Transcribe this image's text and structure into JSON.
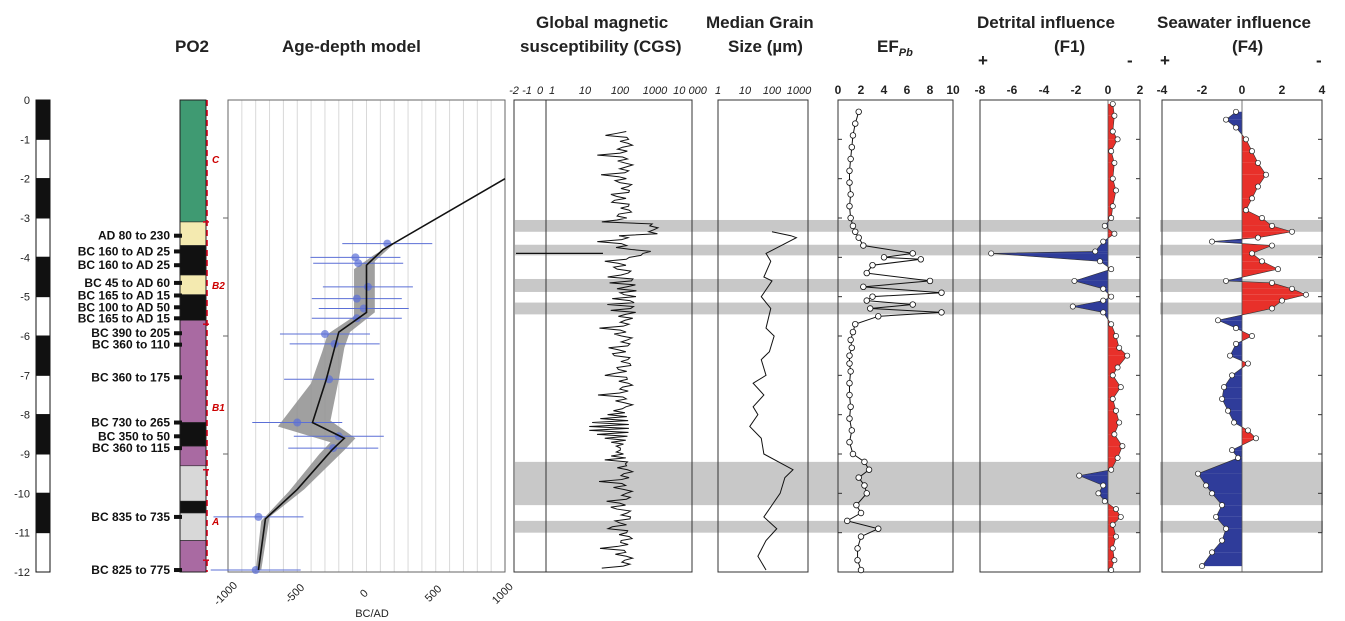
{
  "colors": {
    "band": "#c8c8c8",
    "envelope": "#8f8f8f",
    "grid": "#d9d9d9",
    "negative": "#2f3c9a",
    "positive": "#e8302a",
    "unit_line": "#d0021b",
    "point_blue": "#5b6fd6",
    "facies_green": "#3f9a72",
    "facies_yellow": "#f4eab0",
    "facies_purple": "#a96aa2",
    "facies_black": "#111111",
    "facies_grey": "#d8d8d8"
  },
  "core": {
    "name": "PO2",
    "units": [
      "C",
      "B2",
      "B1",
      "A"
    ]
  },
  "depth_ticks": [
    "0",
    "-1",
    "-2",
    "-3",
    "-4",
    "-5",
    "-6",
    "-7",
    "-8",
    "-9",
    "-10",
    "-11",
    "-12"
  ],
  "signs": {
    "plus": "+",
    "minus": "-"
  },
  "panel_titles": {
    "age_depth": "Age-depth model",
    "ms_line1": "Global magnetic",
    "ms_line2": "susceptibility (CGS)",
    "grain_line1": "Median Grain",
    "grain_line2": "Size (µm)",
    "ef_main": "EF",
    "ef_sub": "Pb",
    "f1_line1": "Detrital influence",
    "f1_line2": "(F1)",
    "f4_line1": "Seawater influence",
    "f4_line2": "(F4)"
  },
  "ages": [
    {
      "label": "AD 80 to 230",
      "depth": -3.45
    },
    {
      "label": "BC 160 to AD 25",
      "depth": -3.85
    },
    {
      "label": "BC 160 to AD 25",
      "depth": -4.2
    },
    {
      "label": "BC 45 to AD 60",
      "depth": -4.65
    },
    {
      "label": "BC 165 to AD 15",
      "depth": -4.97
    },
    {
      "label": "BC 100 to AD 50",
      "depth": -5.27
    },
    {
      "label": "BC 165 to AD 15",
      "depth": -5.55
    },
    {
      "label": "BC 390 to 205",
      "depth": -5.93
    },
    {
      "label": "BC 360 to 110",
      "depth": -6.22
    },
    {
      "label": "BC 360 to 175",
      "depth": -7.05
    },
    {
      "label": "BC 730 to 265",
      "depth": -8.2
    },
    {
      "label": "BC 350 to 50",
      "depth": -8.55
    },
    {
      "label": "BC 360 to 115",
      "depth": -8.85
    },
    {
      "label": "BC 835 to 735",
      "depth": -10.6
    },
    {
      "label": "BC 825 to 775",
      "depth": -11.95
    }
  ],
  "chart_data": [
    {
      "type": "line",
      "title": "Age-depth model",
      "xlabel": "BC/AD",
      "ylabel": "",
      "xlim": [
        -1000,
        1000
      ],
      "ylim": [
        -12,
        0
      ],
      "xticks": [
        "-1000",
        "-500",
        "0",
        "500",
        "1000"
      ],
      "model": [
        [
          1000,
          -2.0
        ],
        [
          120,
          -3.8
        ],
        [
          0,
          -4.2
        ],
        [
          0,
          -4.6
        ],
        [
          0,
          -5.0
        ],
        [
          0,
          -5.4
        ],
        [
          -200,
          -5.9
        ],
        [
          -230,
          -6.3
        ],
        [
          -290,
          -7.1
        ],
        [
          -390,
          -8.2
        ],
        [
          -160,
          -8.6
        ],
        [
          -250,
          -8.9
        ],
        [
          -500,
          -9.9
        ],
        [
          -730,
          -10.65
        ],
        [
          -780,
          -11.95
        ]
      ],
      "envelope_upper": [
        [
          1000,
          -2.0
        ],
        [
          200,
          -3.65
        ],
        [
          60,
          -4.1
        ],
        [
          60,
          -4.6
        ],
        [
          60,
          -5.0
        ],
        [
          60,
          -5.4
        ],
        [
          -120,
          -5.9
        ],
        [
          -160,
          -6.3
        ],
        [
          -200,
          -7.1
        ],
        [
          -260,
          -8.15
        ],
        [
          -80,
          -8.6
        ],
        [
          -160,
          -8.9
        ],
        [
          -450,
          -9.9
        ],
        [
          -700,
          -10.6
        ],
        [
          -760,
          -11.95
        ]
      ],
      "envelope_lower": [
        [
          1000,
          -2.0
        ],
        [
          50,
          -3.95
        ],
        [
          -90,
          -4.3
        ],
        [
          -90,
          -4.7
        ],
        [
          -90,
          -5.1
        ],
        [
          -90,
          -5.5
        ],
        [
          -280,
          -5.95
        ],
        [
          -320,
          -6.4
        ],
        [
          -400,
          -7.2
        ],
        [
          -640,
          -8.3
        ],
        [
          -260,
          -8.7
        ],
        [
          -340,
          -9.0
        ],
        [
          -560,
          -9.95
        ],
        [
          -760,
          -10.7
        ],
        [
          -800,
          -11.95
        ]
      ],
      "dates": [
        [
          150,
          -3.65
        ],
        [
          -80,
          -4.0
        ],
        [
          -60,
          -4.15
        ],
        [
          10,
          -4.75
        ],
        [
          -70,
          -5.05
        ],
        [
          -20,
          -5.3
        ],
        [
          -70,
          -5.55
        ],
        [
          -300,
          -5.95
        ],
        [
          -230,
          -6.2
        ],
        [
          -270,
          -7.1
        ],
        [
          -500,
          -8.2
        ],
        [
          -200,
          -8.55
        ],
        [
          -240,
          -8.85
        ],
        [
          -780,
          -10.6
        ],
        [
          -800,
          -11.95
        ]
      ]
    },
    {
      "type": "line",
      "title": "Global magnetic susceptibility (CGS)",
      "xscale": "log",
      "ylim": [
        -12,
        0
      ],
      "xticks": [
        "-2",
        "-1",
        "0",
        "1",
        "10",
        "100",
        "1000",
        "10 000"
      ]
    },
    {
      "type": "line",
      "title": "Median Grain Size (µm)",
      "xscale": "log",
      "xticks": [
        "1",
        "10",
        "100",
        "1000"
      ],
      "ylim": [
        -12,
        0
      ],
      "points": [
        [
          100,
          -3.35
        ],
        [
          500,
          -3.45
        ],
        [
          800,
          -3.5
        ],
        [
          60,
          -3.9
        ],
        [
          90,
          -4.1
        ],
        [
          50,
          -4.5
        ],
        [
          100,
          -4.6
        ],
        [
          40,
          -5.0
        ],
        [
          90,
          -5.3
        ],
        [
          60,
          -5.8
        ],
        [
          120,
          -6.0
        ],
        [
          80,
          -6.4
        ],
        [
          40,
          -6.6
        ],
        [
          60,
          -7.0
        ],
        [
          20,
          -7.2
        ],
        [
          50,
          -7.5
        ],
        [
          20,
          -7.8
        ],
        [
          30,
          -8.0
        ],
        [
          15,
          -8.3
        ],
        [
          40,
          -8.6
        ],
        [
          50,
          -9.0
        ],
        [
          600,
          -9.4
        ],
        [
          300,
          -9.6
        ],
        [
          200,
          -10.0
        ],
        [
          100,
          -10.3
        ],
        [
          50,
          -10.6
        ],
        [
          150,
          -10.9
        ],
        [
          60,
          -11.2
        ],
        [
          30,
          -11.6
        ],
        [
          60,
          -11.95
        ]
      ]
    },
    {
      "type": "line",
      "title": "EF Pb",
      "xlim": [
        0,
        10
      ],
      "xticks": [
        "0",
        "2",
        "4",
        "6",
        "8",
        "10"
      ],
      "ylim": [
        -12,
        0
      ],
      "points": [
        [
          1.8,
          -0.3
        ],
        [
          1.5,
          -0.6
        ],
        [
          1.3,
          -0.9
        ],
        [
          1.2,
          -1.2
        ],
        [
          1.1,
          -1.5
        ],
        [
          1.0,
          -1.8
        ],
        [
          1.0,
          -2.1
        ],
        [
          1.1,
          -2.4
        ],
        [
          1.0,
          -2.7
        ],
        [
          1.1,
          -3.0
        ],
        [
          1.3,
          -3.2
        ],
        [
          1.5,
          -3.35
        ],
        [
          1.8,
          -3.5
        ],
        [
          2.2,
          -3.7
        ],
        [
          6.5,
          -3.9
        ],
        [
          4.0,
          -4.0
        ],
        [
          7.2,
          -4.05
        ],
        [
          3.0,
          -4.2
        ],
        [
          2.5,
          -4.4
        ],
        [
          8.0,
          -4.6
        ],
        [
          2.2,
          -4.75
        ],
        [
          9.0,
          -4.9
        ],
        [
          3.0,
          -5.0
        ],
        [
          2.5,
          -5.1
        ],
        [
          6.5,
          -5.2
        ],
        [
          2.8,
          -5.3
        ],
        [
          9.0,
          -5.4
        ],
        [
          3.5,
          -5.5
        ],
        [
          1.5,
          -5.7
        ],
        [
          1.3,
          -5.9
        ],
        [
          1.1,
          -6.1
        ],
        [
          1.2,
          -6.3
        ],
        [
          1.0,
          -6.5
        ],
        [
          1.0,
          -6.7
        ],
        [
          1.1,
          -6.9
        ],
        [
          1.0,
          -7.2
        ],
        [
          1.0,
          -7.5
        ],
        [
          1.1,
          -7.8
        ],
        [
          1.0,
          -8.1
        ],
        [
          1.2,
          -8.4
        ],
        [
          1.0,
          -8.7
        ],
        [
          1.3,
          -9.0
        ],
        [
          2.3,
          -9.2
        ],
        [
          2.7,
          -9.4
        ],
        [
          1.8,
          -9.6
        ],
        [
          2.3,
          -9.8
        ],
        [
          2.5,
          -10.0
        ],
        [
          1.6,
          -10.3
        ],
        [
          2.0,
          -10.5
        ],
        [
          0.8,
          -10.7
        ],
        [
          3.5,
          -10.9
        ],
        [
          2.0,
          -11.1
        ],
        [
          1.7,
          -11.4
        ],
        [
          1.7,
          -11.7
        ],
        [
          2.0,
          -11.95
        ]
      ]
    },
    {
      "type": "area",
      "title": "Detrital influence (F1)",
      "xlim": [
        -8,
        2
      ],
      "xticks": [
        "-8",
        "-6",
        "-4",
        "-2",
        "0",
        "2"
      ],
      "ylim": [
        -12,
        0
      ],
      "points": [
        [
          0.3,
          -0.1
        ],
        [
          0.4,
          -0.4
        ],
        [
          0.3,
          -0.8
        ],
        [
          0.6,
          -1.0
        ],
        [
          0.2,
          -1.3
        ],
        [
          0.4,
          -1.6
        ],
        [
          0.3,
          -2.0
        ],
        [
          0.5,
          -2.3
        ],
        [
          0.3,
          -2.7
        ],
        [
          0.2,
          -3.0
        ],
        [
          -0.2,
          -3.2
        ],
        [
          0.4,
          -3.4
        ],
        [
          -0.3,
          -3.6
        ],
        [
          -0.8,
          -3.85
        ],
        [
          -7.3,
          -3.9
        ],
        [
          -0.5,
          -4.1
        ],
        [
          0.2,
          -4.3
        ],
        [
          -2.1,
          -4.6
        ],
        [
          -0.3,
          -4.8
        ],
        [
          0.2,
          -5.0
        ],
        [
          -0.3,
          -5.1
        ],
        [
          -2.2,
          -5.25
        ],
        [
          -0.3,
          -5.4
        ],
        [
          0.2,
          -5.7
        ],
        [
          0.5,
          -6.0
        ],
        [
          0.7,
          -6.3
        ],
        [
          1.2,
          -6.5
        ],
        [
          0.6,
          -6.8
        ],
        [
          0.3,
          -7.0
        ],
        [
          0.8,
          -7.3
        ],
        [
          0.3,
          -7.6
        ],
        [
          0.5,
          -7.9
        ],
        [
          0.7,
          -8.2
        ],
        [
          0.4,
          -8.5
        ],
        [
          0.9,
          -8.8
        ],
        [
          0.6,
          -9.1
        ],
        [
          0.2,
          -9.4
        ],
        [
          -1.8,
          -9.55
        ],
        [
          -0.3,
          -9.8
        ],
        [
          -0.6,
          -10.0
        ],
        [
          -0.2,
          -10.2
        ],
        [
          0.5,
          -10.4
        ],
        [
          0.8,
          -10.6
        ],
        [
          0.3,
          -10.8
        ],
        [
          0.5,
          -11.1
        ],
        [
          0.3,
          -11.4
        ],
        [
          0.4,
          -11.7
        ],
        [
          0.2,
          -11.95
        ]
      ]
    },
    {
      "type": "area",
      "title": "Seawater influence (F4)",
      "xlim": [
        -4,
        4
      ],
      "xticks": [
        "-4",
        "-2",
        "0",
        "2",
        "4"
      ],
      "ylim": [
        -12,
        0
      ],
      "points": [
        [
          -0.3,
          -0.3
        ],
        [
          -0.8,
          -0.5
        ],
        [
          -0.3,
          -0.7
        ],
        [
          0.2,
          -1.0
        ],
        [
          0.5,
          -1.3
        ],
        [
          0.8,
          -1.6
        ],
        [
          1.2,
          -1.9
        ],
        [
          0.8,
          -2.2
        ],
        [
          0.5,
          -2.5
        ],
        [
          0.2,
          -2.8
        ],
        [
          1.0,
          -3.0
        ],
        [
          1.5,
          -3.2
        ],
        [
          2.5,
          -3.35
        ],
        [
          0.8,
          -3.5
        ],
        [
          -1.5,
          -3.6
        ],
        [
          1.5,
          -3.7
        ],
        [
          0.5,
          -3.9
        ],
        [
          1.0,
          -4.1
        ],
        [
          1.8,
          -4.3
        ],
        [
          -0.8,
          -4.6
        ],
        [
          1.5,
          -4.65
        ],
        [
          2.5,
          -4.8
        ],
        [
          3.2,
          -4.95
        ],
        [
          2.0,
          -5.1
        ],
        [
          1.5,
          -5.3
        ],
        [
          -1.2,
          -5.6
        ],
        [
          -0.3,
          -5.8
        ],
        [
          0.5,
          -6.0
        ],
        [
          -0.3,
          -6.2
        ],
        [
          -0.6,
          -6.5
        ],
        [
          0.3,
          -6.7
        ],
        [
          -0.5,
          -7.0
        ],
        [
          -0.9,
          -7.3
        ],
        [
          -1.0,
          -7.6
        ],
        [
          -0.7,
          -7.9
        ],
        [
          -0.4,
          -8.2
        ],
        [
          0.3,
          -8.4
        ],
        [
          0.7,
          -8.6
        ],
        [
          -0.5,
          -8.9
        ],
        [
          -0.2,
          -9.1
        ],
        [
          -2.2,
          -9.5
        ],
        [
          -1.8,
          -9.8
        ],
        [
          -1.5,
          -10.0
        ],
        [
          -1.0,
          -10.3
        ],
        [
          -1.3,
          -10.6
        ],
        [
          -0.8,
          -10.9
        ],
        [
          -1.0,
          -11.2
        ],
        [
          -1.5,
          -11.5
        ],
        [
          -2.0,
          -11.85
        ]
      ]
    }
  ],
  "bands": [
    [
      -3.05,
      -3.35
    ],
    [
      -3.68,
      -3.95
    ],
    [
      -4.55,
      -4.88
    ],
    [
      -5.15,
      -5.45
    ],
    [
      -9.2,
      -10.3
    ],
    [
      -10.7,
      -11.0
    ]
  ]
}
